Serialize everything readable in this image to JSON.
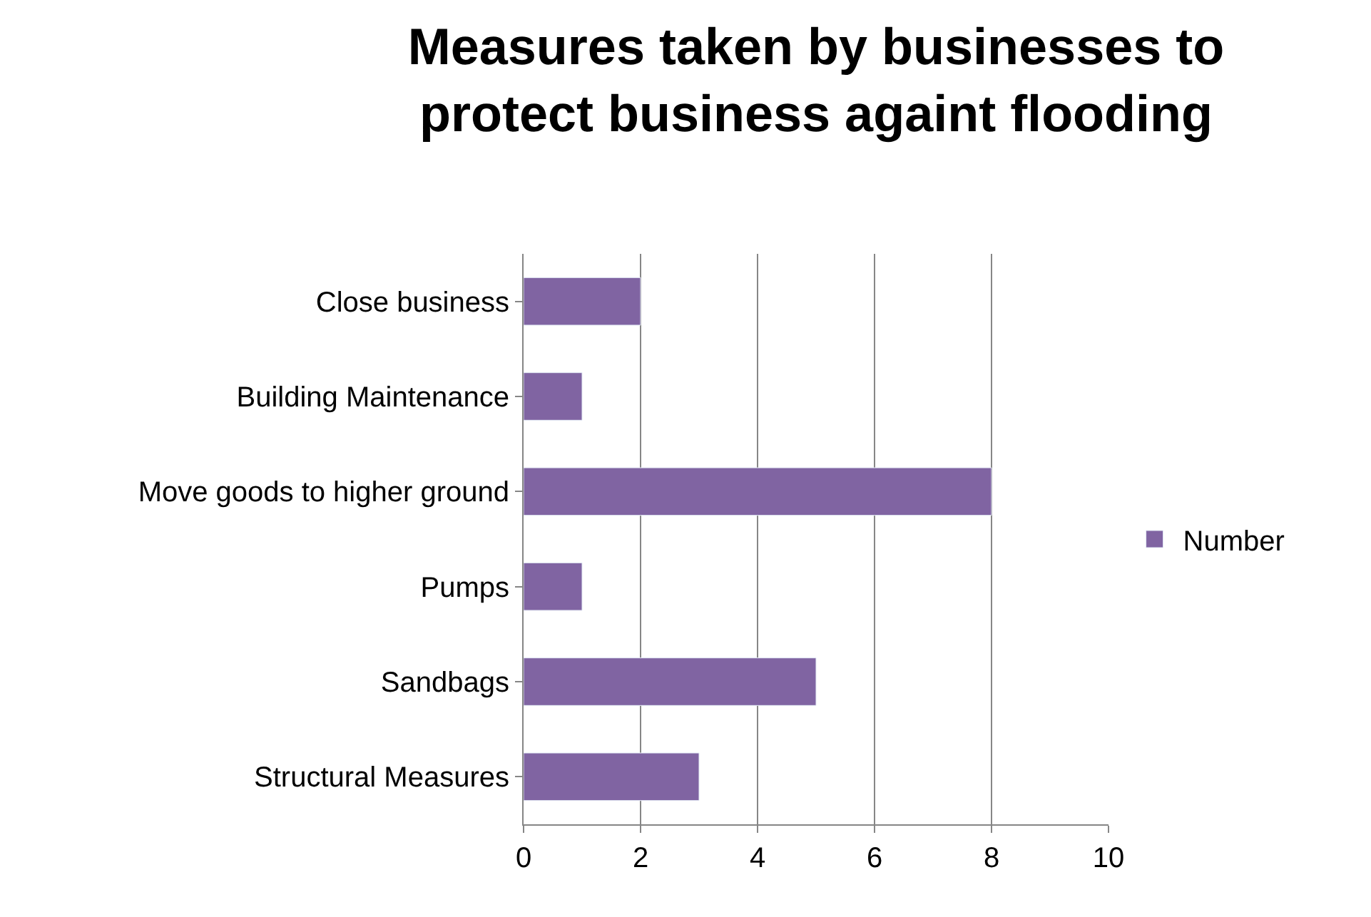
{
  "chart_data": {
    "type": "bar",
    "orientation": "horizontal",
    "title": "Measures taken by businesses to\nprotect business againt flooding",
    "categories": [
      "Close business",
      "Building Maintenance",
      "Move goods to higher ground",
      "Pumps",
      "Sandbags",
      "Structural Measures"
    ],
    "series": [
      {
        "name": "Number",
        "color": "#8064a2",
        "values": [
          2,
          1,
          8,
          1,
          5,
          3
        ]
      }
    ],
    "xlim": [
      0,
      10
    ],
    "xticks": [
      0,
      2,
      4,
      6,
      8,
      10
    ],
    "grid": "x",
    "legend": "right"
  }
}
